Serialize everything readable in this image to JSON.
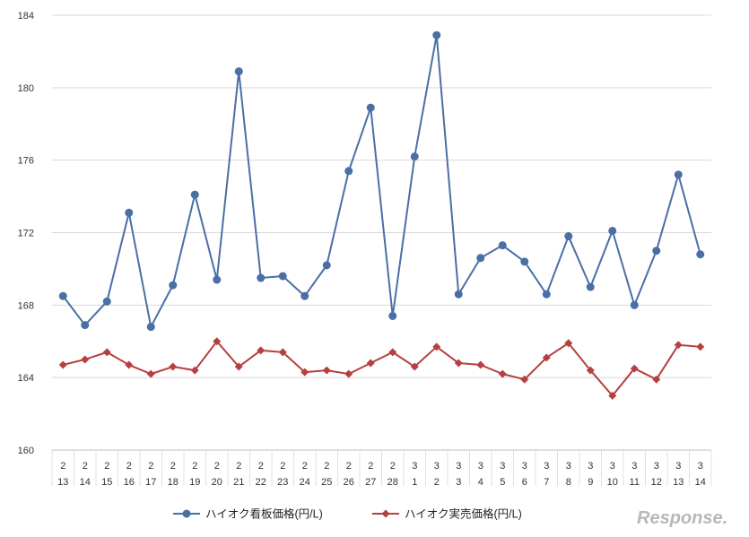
{
  "chart_data": {
    "type": "line",
    "x": [
      {
        "month": "2",
        "day": "13"
      },
      {
        "month": "2",
        "day": "14"
      },
      {
        "month": "2",
        "day": "15"
      },
      {
        "month": "2",
        "day": "16"
      },
      {
        "month": "2",
        "day": "17"
      },
      {
        "month": "2",
        "day": "18"
      },
      {
        "month": "2",
        "day": "19"
      },
      {
        "month": "2",
        "day": "20"
      },
      {
        "month": "2",
        "day": "21"
      },
      {
        "month": "2",
        "day": "22"
      },
      {
        "month": "2",
        "day": "23"
      },
      {
        "month": "2",
        "day": "24"
      },
      {
        "month": "2",
        "day": "25"
      },
      {
        "month": "2",
        "day": "26"
      },
      {
        "month": "2",
        "day": "27"
      },
      {
        "month": "2",
        "day": "28"
      },
      {
        "month": "3",
        "day": "1"
      },
      {
        "month": "3",
        "day": "2"
      },
      {
        "month": "3",
        "day": "3"
      },
      {
        "month": "3",
        "day": "4"
      },
      {
        "month": "3",
        "day": "5"
      },
      {
        "month": "3",
        "day": "6"
      },
      {
        "month": "3",
        "day": "7"
      },
      {
        "month": "3",
        "day": "8"
      },
      {
        "month": "3",
        "day": "9"
      },
      {
        "month": "3",
        "day": "10"
      },
      {
        "month": "3",
        "day": "11"
      },
      {
        "month": "3",
        "day": "12"
      },
      {
        "month": "3",
        "day": "13"
      },
      {
        "month": "3",
        "day": "14"
      }
    ],
    "series": [
      {
        "name": "ハイオク看板価格(円/L)",
        "color": "#4a6fa5",
        "marker": "circle",
        "values": [
          168.5,
          166.9,
          168.2,
          173.1,
          166.8,
          169.1,
          174.1,
          169.4,
          180.9,
          169.5,
          169.6,
          168.5,
          170.2,
          175.4,
          178.9,
          167.4,
          176.2,
          182.9,
          168.6,
          170.6,
          171.3,
          170.4,
          168.6,
          171.8,
          169.0,
          172.1,
          168.0,
          171.0,
          175.2,
          170.8
        ]
      },
      {
        "name": "ハイオク実売価格(円/L)",
        "color": "#b5403f",
        "marker": "diamond",
        "values": [
          164.7,
          165.0,
          165.4,
          164.7,
          164.2,
          164.6,
          164.4,
          166.0,
          164.6,
          165.5,
          165.4,
          164.3,
          164.4,
          164.2,
          164.8,
          165.4,
          164.6,
          165.7,
          164.8,
          164.7,
          164.2,
          163.9,
          165.1,
          165.9,
          164.4,
          163.0,
          164.5,
          163.9,
          165.8,
          165.7
        ]
      }
    ],
    "yticks": [
      "160",
      "164",
      "168",
      "172",
      "176",
      "180",
      "184"
    ],
    "ylim": [
      160,
      184
    ],
    "grid": true,
    "legend_position": "bottom-center"
  },
  "watermark": "Response."
}
